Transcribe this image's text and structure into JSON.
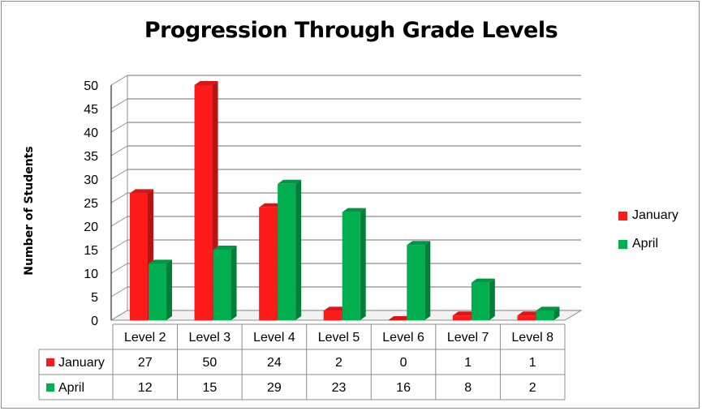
{
  "chart_data": {
    "type": "bar",
    "title": "Progression Through Grade Levels",
    "xlabel": "",
    "ylabel": "Number of Students",
    "ylim": [
      0,
      50
    ],
    "yticks": [
      0,
      5,
      10,
      15,
      20,
      25,
      30,
      35,
      40,
      45,
      50
    ],
    "categories": [
      "Level 2",
      "Level 3",
      "Level 4",
      "Level 5",
      "Level 6",
      "Level 7",
      "Level 8"
    ],
    "series": [
      {
        "name": "January",
        "values": [
          27,
          50,
          24,
          2,
          0,
          1,
          1
        ],
        "color": "#ff1a1a"
      },
      {
        "name": "April",
        "values": [
          12,
          15,
          29,
          23,
          16,
          8,
          2
        ],
        "color": "#00b050"
      }
    ],
    "grid": true,
    "legend": "right",
    "data_table": true
  }
}
